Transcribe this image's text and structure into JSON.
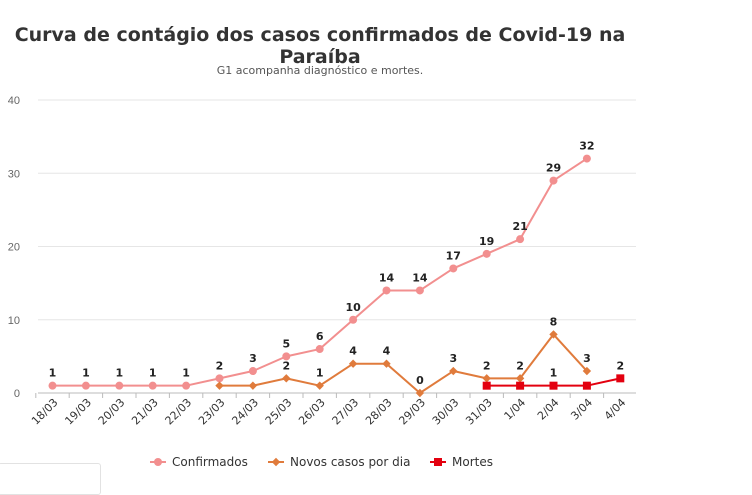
{
  "chart_data": {
    "type": "line",
    "title": "Curva de contágio dos casos confirmados de Covid-19 na Paraíba",
    "subtitle": "G1 acompanha diagnóstico e mortes.",
    "categories": [
      "18/03",
      "19/03",
      "20/03",
      "21/03",
      "22/03",
      "23/03",
      "24/03",
      "25/03",
      "26/03",
      "27/03",
      "28/03",
      "29/03",
      "30/03",
      "31/03",
      "1/04",
      "2/04",
      "3/04",
      "4/04"
    ],
    "ylim": [
      0,
      40
    ],
    "yticks": [
      0,
      10,
      20,
      30,
      40
    ],
    "grid": true,
    "legend_position": "bottom",
    "series": [
      {
        "name": "Confirmados",
        "color": "#f28f8f",
        "marker": "circle",
        "values": [
          1,
          1,
          1,
          1,
          1,
          2,
          3,
          5,
          6,
          10,
          14,
          14,
          17,
          19,
          21,
          29,
          32,
          null
        ],
        "labels": [
          1,
          1,
          1,
          1,
          1,
          2,
          3,
          5,
          6,
          10,
          14,
          14,
          17,
          19,
          21,
          29,
          32,
          null
        ]
      },
      {
        "name": "Novos casos por dia",
        "color": "#e07b3c",
        "marker": "diamond",
        "values": [
          null,
          null,
          null,
          null,
          null,
          1,
          1,
          2,
          1,
          4,
          4,
          0,
          3,
          2,
          2,
          8,
          3,
          null
        ],
        "labels": [
          null,
          null,
          null,
          null,
          null,
          null,
          null,
          2,
          1,
          4,
          4,
          0,
          3,
          2,
          2,
          8,
          3,
          null
        ]
      },
      {
        "name": "Mortes",
        "color": "#e3000f",
        "marker": "square",
        "values": [
          null,
          null,
          null,
          null,
          null,
          null,
          null,
          null,
          null,
          null,
          null,
          null,
          null,
          1,
          1,
          1,
          1,
          2
        ],
        "labels": [
          null,
          null,
          null,
          null,
          null,
          null,
          null,
          null,
          null,
          null,
          null,
          null,
          null,
          null,
          null,
          1,
          null,
          2
        ]
      }
    ]
  }
}
